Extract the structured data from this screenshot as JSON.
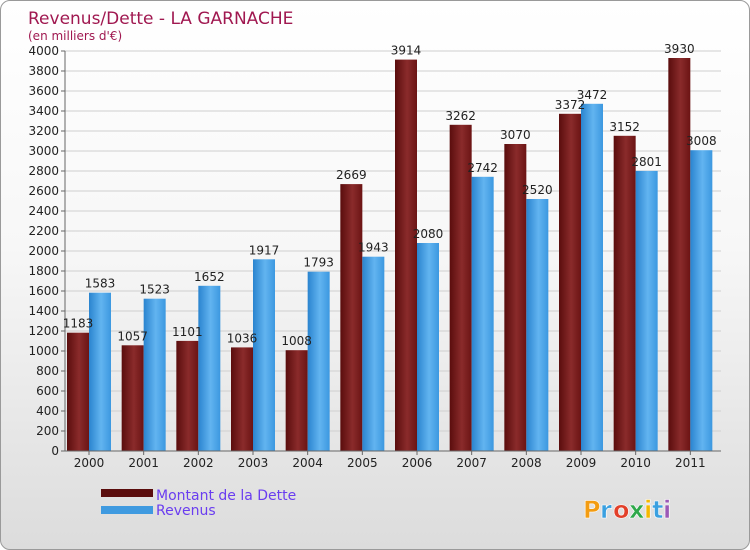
{
  "chart_data": {
    "type": "bar",
    "title": "Revenus/Dette - LA GARNACHE",
    "subtitle": "(en milliers d'€)",
    "categories": [
      "2000",
      "2001",
      "2002",
      "2003",
      "2004",
      "2005",
      "2006",
      "2007",
      "2008",
      "2009",
      "2010",
      "2011"
    ],
    "series": [
      {
        "name": "Montant de la Dette",
        "color": "#7a1a1a",
        "values": [
          1183,
          1057,
          1101,
          1036,
          1008,
          2669,
          3914,
          3262,
          3070,
          3372,
          3152,
          3930
        ]
      },
      {
        "name": "Revenus",
        "color": "#3f9ae0",
        "values": [
          1583,
          1523,
          1652,
          1917,
          1793,
          1943,
          2080,
          2742,
          2520,
          3472,
          2801,
          3008
        ]
      }
    ],
    "ylim": [
      0,
      4000
    ],
    "ytick_step": 200,
    "grid": true,
    "legend_position": "bottom-left"
  },
  "brand": {
    "letters": [
      "P",
      "r",
      "o",
      "x",
      "i",
      "t",
      "i"
    ],
    "colors": [
      "#f39c12",
      "#3aa0e0",
      "#e2402a",
      "#2ea84a",
      "#f5b800",
      "#3aa0e0",
      "#9b59b6"
    ]
  }
}
